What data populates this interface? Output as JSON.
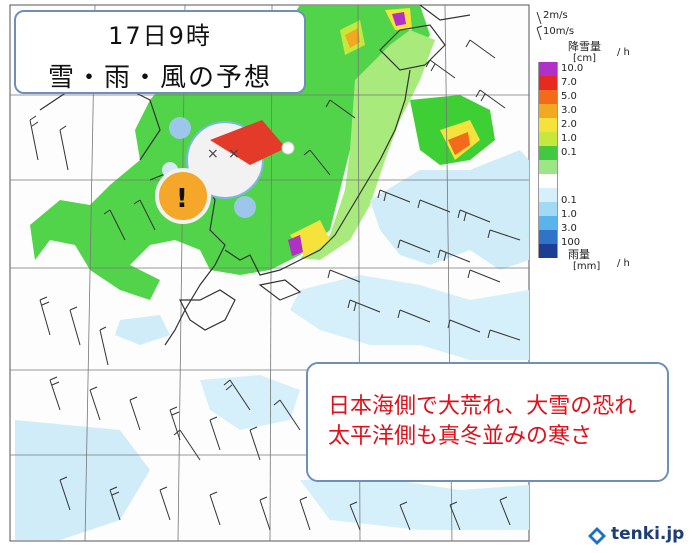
{
  "title": {
    "line1": "17日9時",
    "line2": "雪・雨・風の予想"
  },
  "headline": {
    "line1": "日本海側で大荒れ、大雪の恐れ",
    "line2": "太平洋側も真冬並みの寒さ"
  },
  "wind_scale": {
    "label1": "2m/s",
    "label2": "10m/s"
  },
  "snow_legend": {
    "title": "降雪量",
    "unit": "[cm]",
    "per": "/ h",
    "ticks": [
      "10.0",
      "7.0",
      "5.0",
      "3.0",
      "2.0",
      "1.0",
      "0.1"
    ],
    "colors": [
      "#b030c8",
      "#e62a20",
      "#f26a1a",
      "#f3a822",
      "#f5e23a",
      "#c6e83a",
      "#44c840",
      "#9ce686",
      "#ffffff"
    ]
  },
  "rain_legend": {
    "title": "雨量",
    "unit": "[mm]",
    "per": "/ h",
    "ticks": [
      "0.1",
      "1.0",
      "3.0",
      "100"
    ],
    "colors": [
      "#d6f0fb",
      "#a2d9f4",
      "#5ab3ea",
      "#2f74c9",
      "#1c3e94"
    ]
  },
  "brand": {
    "name": "tenki.jp"
  },
  "icon_names": [
    "snowman-santa-icon",
    "warning-icon",
    "tenki-logo-icon"
  ],
  "map_colors": {
    "snow_green": "#3ecf35",
    "snow_lightgreen": "#a9ea7c",
    "rain_light": "#cfecf8",
    "coast": "#333333",
    "grid": "#777777"
  }
}
